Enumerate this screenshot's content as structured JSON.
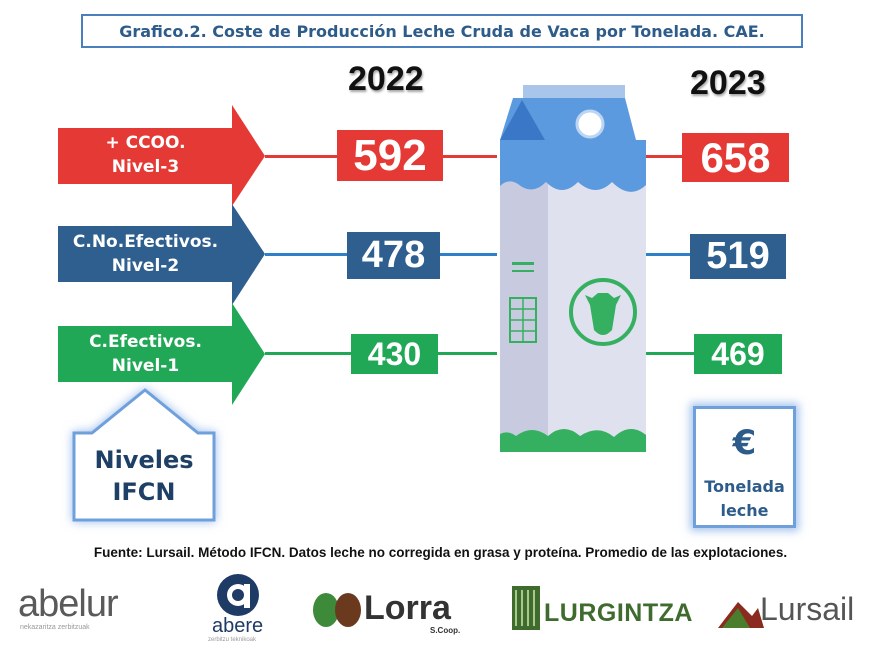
{
  "title": "Grafico.2. Coste de Producción Leche Cruda de Vaca por Tonelada. CAE.",
  "chart_data": {
    "type": "table",
    "title": "Grafico.2. Coste de Producción Leche Cruda de Vaca por Tonelada. CAE.",
    "columns": [
      "2022",
      "2023"
    ],
    "rows": [
      {
        "label_line1": "+ CCOO.",
        "label_line2": "Nivel-3",
        "color": "#e53935",
        "v2022": 592,
        "v2023": 658
      },
      {
        "label_line1": "C.No.Efectivos.",
        "label_line2": "Nivel-2",
        "color": "#2e5f8f",
        "v2022": 478,
        "v2023": 519
      },
      {
        "label_line1": "C.Efectivos.",
        "label_line2": "Nivel-1",
        "color": "#21a857",
        "v2022": 430,
        "v2023": 469
      }
    ],
    "unit_symbol": "€",
    "unit_line1": "Tonelada",
    "unit_line2": "leche"
  },
  "niveles_line1": "Niveles",
  "niveles_line2": "IFCN",
  "footer": "Fuente: Lursail. Método IFCN. Datos leche no corregida en grasa y proteína. Promedio de las explotaciones.",
  "logos": {
    "abelur": "abelur",
    "abelur_sub": "nekazaritza zerbitzuak",
    "abere": "abere",
    "abere_sub": "zerbitzu teknikoak",
    "lorra": "Lorra",
    "lorra_sub": "S.Coop.",
    "lurgintza": "LURGINTZA",
    "lursail": "Lursail"
  }
}
